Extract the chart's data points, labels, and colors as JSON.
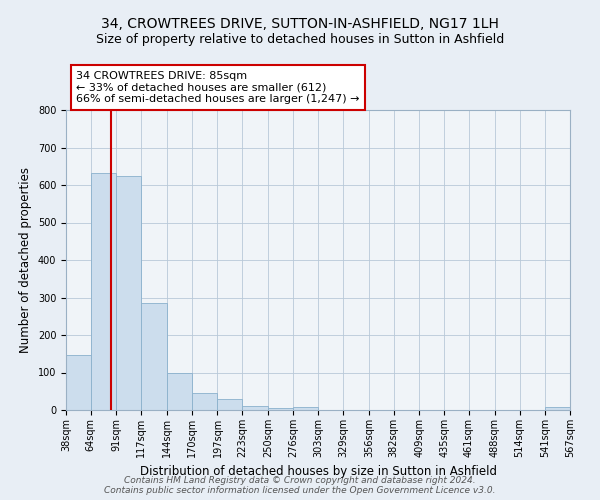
{
  "title": "34, CROWTREES DRIVE, SUTTON-IN-ASHFIELD, NG17 1LH",
  "subtitle": "Size of property relative to detached houses in Sutton in Ashfield",
  "xlabel": "Distribution of detached houses by size in Sutton in Ashfield",
  "ylabel": "Number of detached properties",
  "bar_heights": [
    148,
    632,
    625,
    285,
    100,
    45,
    30,
    12,
    5,
    8,
    0,
    0,
    0,
    0,
    0,
    0,
    0,
    0,
    0,
    7
  ],
  "bin_edges": [
    38,
    64,
    91,
    117,
    144,
    170,
    197,
    223,
    250,
    276,
    303,
    329,
    356,
    382,
    409,
    435,
    461,
    488,
    514,
    541,
    567
  ],
  "bin_labels": [
    "38sqm",
    "64sqm",
    "91sqm",
    "117sqm",
    "144sqm",
    "170sqm",
    "197sqm",
    "223sqm",
    "250sqm",
    "276sqm",
    "303sqm",
    "329sqm",
    "356sqm",
    "382sqm",
    "409sqm",
    "435sqm",
    "461sqm",
    "488sqm",
    "514sqm",
    "541sqm",
    "567sqm"
  ],
  "bar_color": "#ccdded",
  "bar_edge_color": "#8ab0cc",
  "vline_x": 85,
  "vline_color": "#cc0000",
  "annotation_line1": "34 CROWTREES DRIVE: 85sqm",
  "annotation_line2": "← 33% of detached houses are smaller (612)",
  "annotation_line3": "66% of semi-detached houses are larger (1,247) →",
  "ylim": [
    0,
    800
  ],
  "yticks": [
    0,
    100,
    200,
    300,
    400,
    500,
    600,
    700,
    800
  ],
  "footer_line1": "Contains HM Land Registry data © Crown copyright and database right 2024.",
  "footer_line2": "Contains public sector information licensed under the Open Government Licence v3.0.",
  "bg_color": "#e8eef5",
  "plot_bg_color": "#f0f4f8",
  "title_fontsize": 10,
  "subtitle_fontsize": 9,
  "axis_label_fontsize": 8.5,
  "tick_fontsize": 7,
  "annotation_fontsize": 8,
  "footer_fontsize": 6.5
}
